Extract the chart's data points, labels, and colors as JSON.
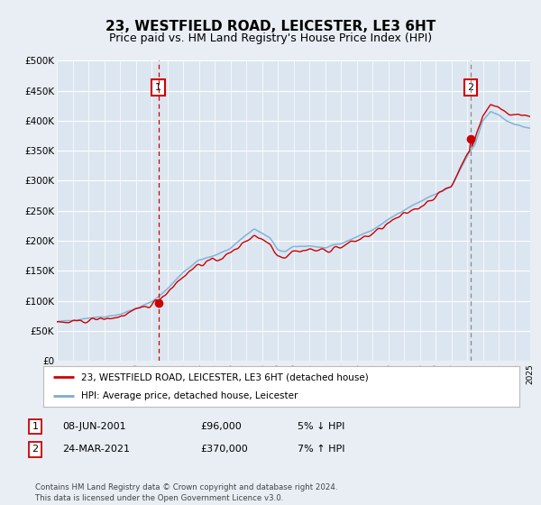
{
  "title": "23, WESTFIELD ROAD, LEICESTER, LE3 6HT",
  "subtitle": "Price paid vs. HM Land Registry's House Price Index (HPI)",
  "x_start_year": 1995,
  "x_end_year": 2025,
  "y_min": 0,
  "y_max": 500000,
  "y_ticks": [
    0,
    50000,
    100000,
    150000,
    200000,
    250000,
    300000,
    350000,
    400000,
    450000,
    500000
  ],
  "y_tick_labels": [
    "£0",
    "£50K",
    "£100K",
    "£150K",
    "£200K",
    "£250K",
    "£300K",
    "£350K",
    "£400K",
    "£450K",
    "£500K"
  ],
  "hpi_color": "#7aadd4",
  "price_color": "#cc0000",
  "marker1_year": 2001.44,
  "marker1_price": 96000,
  "marker2_year": 2021.23,
  "marker2_price": 370000,
  "legend_label1": "23, WESTFIELD ROAD, LEICESTER, LE3 6HT (detached house)",
  "legend_label2": "HPI: Average price, detached house, Leicester",
  "annotation1_label": "1",
  "annotation2_label": "2",
  "table_row1": [
    "1",
    "08-JUN-2001",
    "£96,000",
    "5% ↓ HPI"
  ],
  "table_row2": [
    "2",
    "24-MAR-2021",
    "£370,000",
    "7% ↑ HPI"
  ],
  "footer": "Contains HM Land Registry data © Crown copyright and database right 2024.\nThis data is licensed under the Open Government Licence v3.0.",
  "bg_color": "#e8eef4",
  "plot_bg_color": "#dce6f0",
  "grid_color": "#ffffff",
  "title_fontsize": 11,
  "subtitle_fontsize": 9
}
